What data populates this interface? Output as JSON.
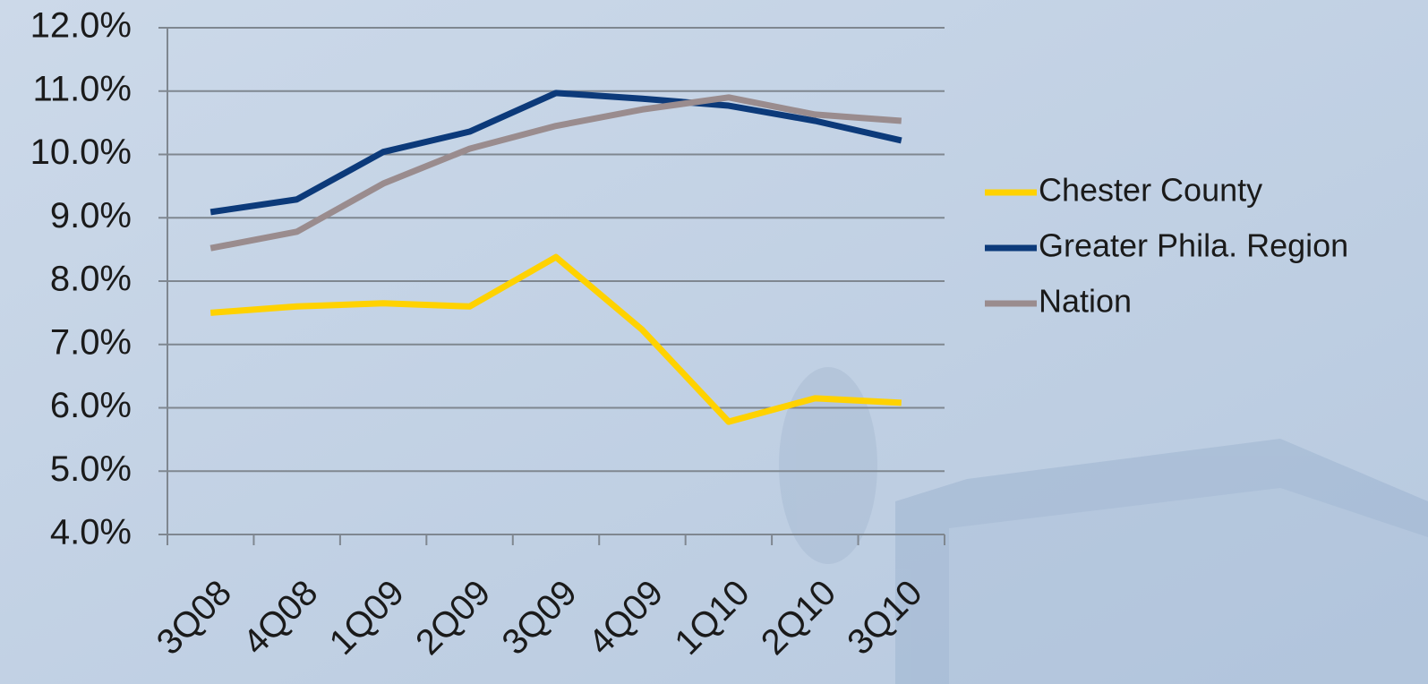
{
  "chart_data": {
    "type": "line",
    "categories": [
      "3Q08",
      "4Q08",
      "1Q09",
      "2Q09",
      "3Q09",
      "4Q09",
      "1Q10",
      "2Q10",
      "3Q10"
    ],
    "series": [
      {
        "name": "Chester County",
        "color": "#ffd200",
        "values": [
          7.5,
          7.6,
          7.65,
          7.6,
          8.38,
          7.23,
          5.78,
          6.15,
          6.08
        ]
      },
      {
        "name": "Greater Phila. Region",
        "color": "#0c3a7a",
        "values": [
          9.09,
          9.29,
          10.04,
          10.36,
          10.97,
          10.88,
          10.77,
          10.53,
          10.22
        ]
      },
      {
        "name": "Nation",
        "color": "#9a8c8e",
        "values": [
          8.52,
          8.78,
          9.54,
          10.09,
          10.45,
          10.71,
          10.9,
          10.63,
          10.53
        ]
      }
    ],
    "ylim": [
      4,
      12
    ],
    "yticks": [
      {
        "value": 4,
        "label": "4.0%"
      },
      {
        "value": 5,
        "label": "5.0%"
      },
      {
        "value": 6,
        "label": "6.0%"
      },
      {
        "value": 7,
        "label": "7.0%"
      },
      {
        "value": 8,
        "label": "8.0%"
      },
      {
        "value": 9,
        "label": "9.0%"
      },
      {
        "value": 10,
        "label": "10.0%"
      },
      {
        "value": 11,
        "label": "11.0%"
      },
      {
        "value": 12,
        "label": "12.0%"
      }
    ],
    "grid": true,
    "legend": "right"
  }
}
